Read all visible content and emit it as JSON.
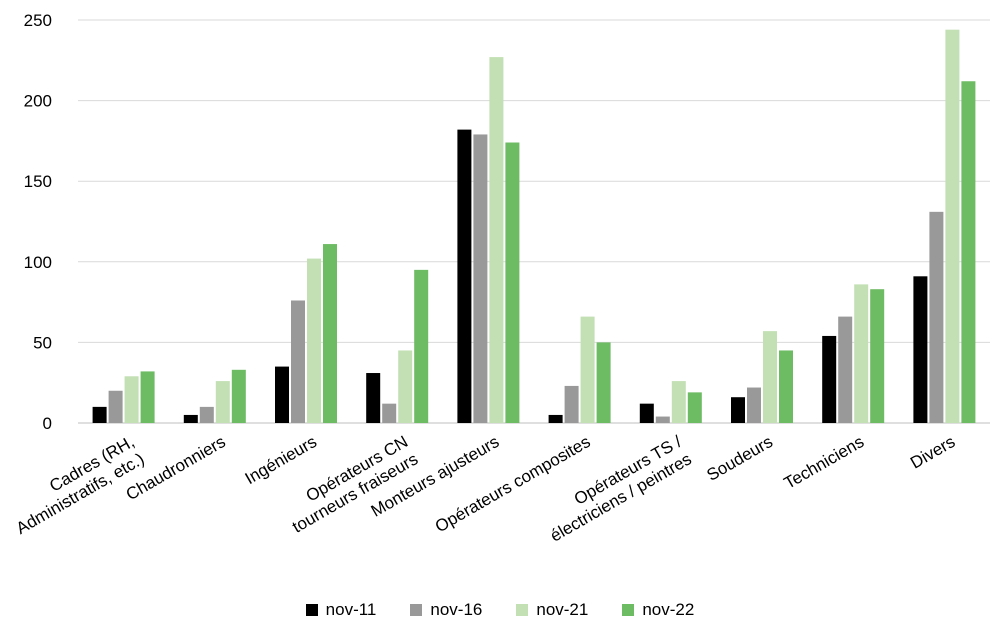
{
  "chart_data": {
    "type": "bar",
    "title": "",
    "xlabel": "",
    "ylabel": "",
    "ylim": [
      0,
      250
    ],
    "yticks": [
      0,
      50,
      100,
      150,
      200,
      250
    ],
    "grid": true,
    "legend_position": "bottom",
    "categories": [
      [
        "Cadres (RH,",
        "Administratifs, etc.)"
      ],
      [
        "Chaudronniers"
      ],
      [
        "Ingénieurs"
      ],
      [
        "Opérateurs CN",
        "tourneurs fraiseurs"
      ],
      [
        "Monteurs ajusteurs"
      ],
      [
        "Opérateurs composites"
      ],
      [
        "Opérateurs TS /",
        "électriciens / peintres"
      ],
      [
        "Soudeurs"
      ],
      [
        "Techniciens"
      ],
      [
        "Divers"
      ]
    ],
    "series": [
      {
        "name": "nov-11",
        "color": "#000000",
        "values": [
          10,
          5,
          35,
          31,
          182,
          5,
          12,
          16,
          54,
          91
        ]
      },
      {
        "name": "nov-16",
        "color": "#999999",
        "values": [
          20,
          10,
          76,
          12,
          179,
          23,
          4,
          22,
          66,
          131
        ]
      },
      {
        "name": "nov-21",
        "color": "#c3e0b5",
        "values": [
          29,
          26,
          102,
          45,
          227,
          66,
          26,
          57,
          86,
          244
        ]
      },
      {
        "name": "nov-22",
        "color": "#6dbb63",
        "values": [
          32,
          33,
          111,
          95,
          174,
          50,
          19,
          45,
          83,
          212
        ]
      }
    ]
  }
}
